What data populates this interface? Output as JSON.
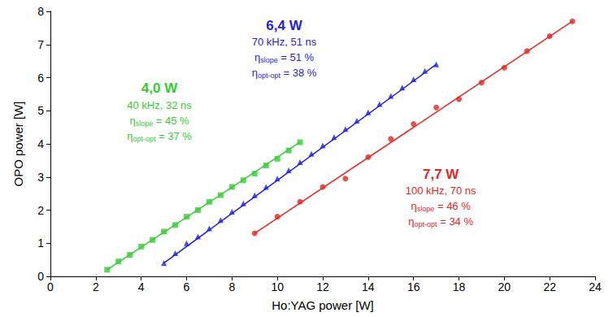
{
  "chart_data": {
    "type": "scatter",
    "x_label": "Ho:YAG power [W]",
    "y_label": "OPO power [W]",
    "xlim": [
      0,
      24
    ],
    "xticks": [
      0,
      2,
      4,
      6,
      8,
      10,
      12,
      14,
      16,
      18,
      20,
      22,
      24
    ],
    "ylim": [
      0,
      8
    ],
    "yticks": [
      0,
      1,
      2,
      3,
      4,
      5,
      6,
      7,
      8
    ],
    "grid": false,
    "series": [
      {
        "color": "#33cc33",
        "marker": "square",
        "x": [
          2.5,
          3.0,
          3.5,
          4.0,
          4.5,
          5.0,
          5.5,
          6.0,
          6.5,
          7.0,
          7.5,
          8.0,
          8.5,
          9.0,
          9.5,
          10.0,
          10.5,
          11.0
        ],
        "values": [
          0.2,
          0.45,
          0.65,
          0.9,
          1.1,
          1.35,
          1.55,
          1.8,
          2.0,
          2.25,
          2.45,
          2.7,
          2.9,
          3.1,
          3.35,
          3.55,
          3.8,
          4.05
        ],
        "fit": [
          [
            2.5,
            0.2
          ],
          [
            11.0,
            4.05
          ]
        ],
        "annotation": {
          "power": "4,0 W",
          "params": "40 kHz, 32 ns",
          "efficiencies": [
            {
              "base": "η",
              "sub": "slope",
              "rest": " = 45 %"
            },
            {
              "base": "η",
              "sub": "opt-opt",
              "rest": " = 37 %"
            }
          ]
        }
      },
      {
        "color": "#1e1ee6",
        "marker": "triangle",
        "x": [
          5.0,
          5.5,
          6.0,
          6.5,
          7.0,
          7.5,
          8.0,
          8.5,
          9.0,
          9.5,
          10.0,
          10.5,
          11.0,
          11.5,
          12.0,
          12.5,
          13.0,
          13.5,
          14.0,
          14.5,
          15.0,
          15.5,
          16.0,
          16.5,
          17.0
        ],
        "values": [
          0.4,
          0.7,
          1.0,
          1.2,
          1.45,
          1.7,
          1.95,
          2.2,
          2.45,
          2.7,
          2.95,
          3.2,
          3.45,
          3.7,
          3.95,
          4.2,
          4.45,
          4.7,
          4.95,
          5.2,
          5.45,
          5.7,
          5.95,
          6.2,
          6.4
        ],
        "fit": [
          [
            5.0,
            0.4
          ],
          [
            17.0,
            6.4
          ]
        ],
        "annotation": {
          "power": "6,4 W",
          "params": "70 kHz, 51 ns",
          "efficiencies": [
            {
              "base": "η",
              "sub": "slope",
              "rest": " = 51 %"
            },
            {
              "base": "η",
              "sub": "opt-opt",
              "rest": " = 38 %"
            }
          ]
        }
      },
      {
        "color": "#e3261f",
        "marker": "circle",
        "x": [
          9,
          10,
          11,
          12,
          13,
          14,
          15,
          16,
          17,
          18,
          19,
          20,
          21,
          22,
          23
        ],
        "values": [
          1.3,
          1.8,
          2.25,
          2.7,
          2.95,
          3.6,
          4.15,
          4.6,
          5.1,
          5.35,
          5.85,
          6.3,
          6.8,
          7.25,
          7.7
        ],
        "fit": [
          [
            9.0,
            1.3
          ],
          [
            23.0,
            7.7
          ]
        ],
        "annotation": {
          "power": "7,7 W",
          "params": "100 kHz, 70 ns",
          "efficiencies": [
            {
              "base": "η",
              "sub": "slope",
              "rest": " = 46 %"
            },
            {
              "base": "η",
              "sub": "opt-opt",
              "rest": " = 34 %"
            }
          ]
        }
      }
    ]
  }
}
